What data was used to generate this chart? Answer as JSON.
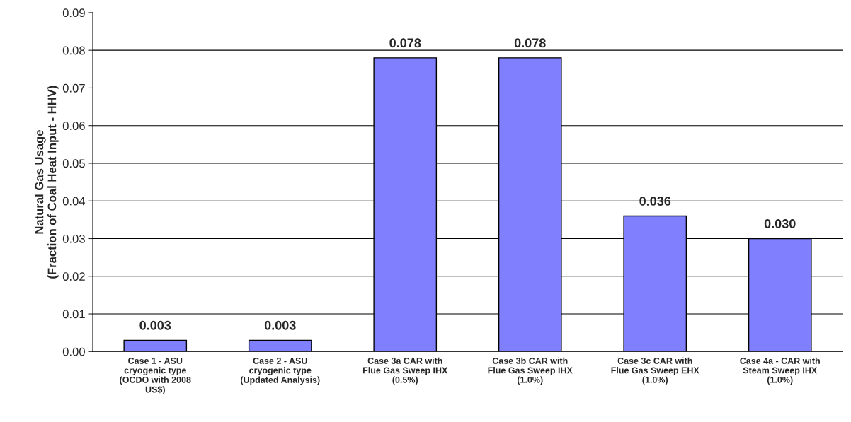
{
  "chart_data": {
    "type": "bar",
    "ylabel": "Natural Gas Usage\n(Fraction of Coal Heat Input - HHV)",
    "categories": [
      "Case 1 - ASU\ncryogenic type\n(OCDO with 2008\nUS$)",
      "Case 2 - ASU\ncryogenic type\n(Updated Analysis)",
      "Case 3a CAR with\nFlue Gas Sweep IHX\n(0.5%)",
      "Case 3b CAR with\nFlue Gas Sweep IHX\n(1.0%)",
      "Case 3c CAR with\nFlue Gas Sweep EHX\n(1.0%)",
      "Case 4a - CAR with\nSteam Sweep IHX\n(1.0%)"
    ],
    "values": [
      0.003,
      0.003,
      0.078,
      0.078,
      0.036,
      0.03
    ],
    "value_labels": [
      "0.003",
      "0.003",
      "0.078",
      "0.078",
      "0.036",
      "0.030"
    ],
    "color": "#8080ff",
    "ylim": [
      0,
      0.09
    ],
    "yticks": [
      {
        "value": 0,
        "label": "0.00"
      },
      {
        "value": 0.01,
        "label": "0.01"
      },
      {
        "value": 0.02,
        "label": "0.02"
      },
      {
        "value": 0.03,
        "label": "0.03"
      },
      {
        "value": 0.04,
        "label": "0.04"
      },
      {
        "value": 0.05,
        "label": "0.05"
      },
      {
        "value": 0.06,
        "label": "0.06"
      },
      {
        "value": 0.07,
        "label": "0.07"
      },
      {
        "value": 0.08,
        "label": "0.08"
      },
      {
        "value": 0.09,
        "label": "0.09"
      }
    ],
    "grid": "y"
  }
}
